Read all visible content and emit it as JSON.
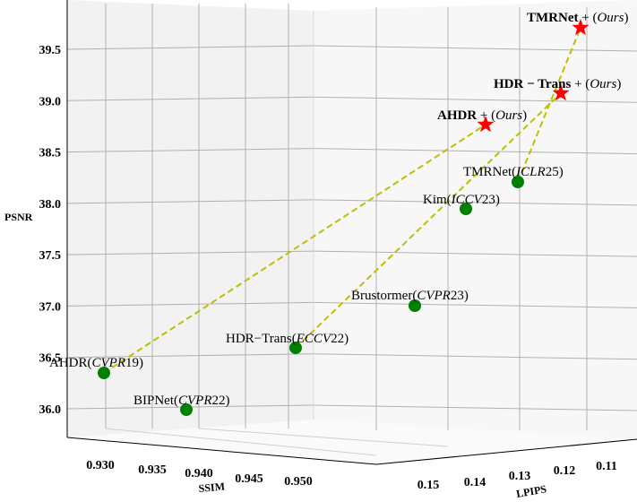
{
  "chart_data": {
    "type": "scatter3d",
    "axes": {
      "x": {
        "label": "SSIM",
        "ticks": [
          "0.930",
          "0.935",
          "0.940",
          "0.945",
          "0.950"
        ]
      },
      "y": {
        "label": "LPIPS",
        "ticks": [
          "0.15",
          "0.14",
          "0.13",
          "0.12",
          "0.11"
        ]
      },
      "z": {
        "label": "PSNR",
        "ticks": [
          "36.0",
          "36.5",
          "37.0",
          "37.5",
          "38.0",
          "38.5",
          "39.0",
          "39.5"
        ]
      }
    },
    "points": [
      {
        "key": "ahdr",
        "name": "AHDR",
        "venue": "CVPR",
        "year": "19",
        "psnr": 36.32,
        "group": "baseline"
      },
      {
        "key": "bipnet",
        "name": "BIPNet",
        "venue": "CVPR",
        "year": "22",
        "psnr": 35.97,
        "group": "baseline"
      },
      {
        "key": "hdrtrans",
        "name": "HDR−Trans",
        "venue": "ECCV",
        "year": "22",
        "psnr": 36.55,
        "group": "baseline"
      },
      {
        "key": "brustormer",
        "name": "Brustormer",
        "venue": "CVPR",
        "year": "23",
        "psnr": 36.98,
        "group": "baseline"
      },
      {
        "key": "kim",
        "name": "Kim",
        "venue": "ICCV",
        "year": "23",
        "psnr": 37.92,
        "group": "baseline"
      },
      {
        "key": "tmrnet",
        "name": "TMRNet",
        "venue": "ICLR",
        "year": "25",
        "psnr": 38.17,
        "group": "baseline"
      },
      {
        "key": "ahdr_plus",
        "name": "AHDR",
        "suffix": "+",
        "tag": "Ours",
        "psnr": 38.75,
        "group": "ours"
      },
      {
        "key": "hdrtrans_plus",
        "name": "HDR − Trans",
        "suffix": "+",
        "tag": "Ours",
        "psnr": 39.05,
        "group": "ours"
      },
      {
        "key": "tmrnet_plus",
        "name": "TMRNet",
        "suffix": "+",
        "tag": "Ours",
        "psnr": 39.7,
        "group": "ours"
      }
    ],
    "links": [
      [
        "ahdr",
        "ahdr_plus"
      ],
      [
        "hdrtrans",
        "hdrtrans_plus"
      ],
      [
        "tmrnet",
        "tmrnet_plus"
      ]
    ],
    "colors": {
      "baseline": "#008000",
      "ours": "#ff0000",
      "link": "#bfbf00",
      "grid": "#b0b0b0",
      "pane": "#f2f2f2"
    },
    "grid": true
  }
}
